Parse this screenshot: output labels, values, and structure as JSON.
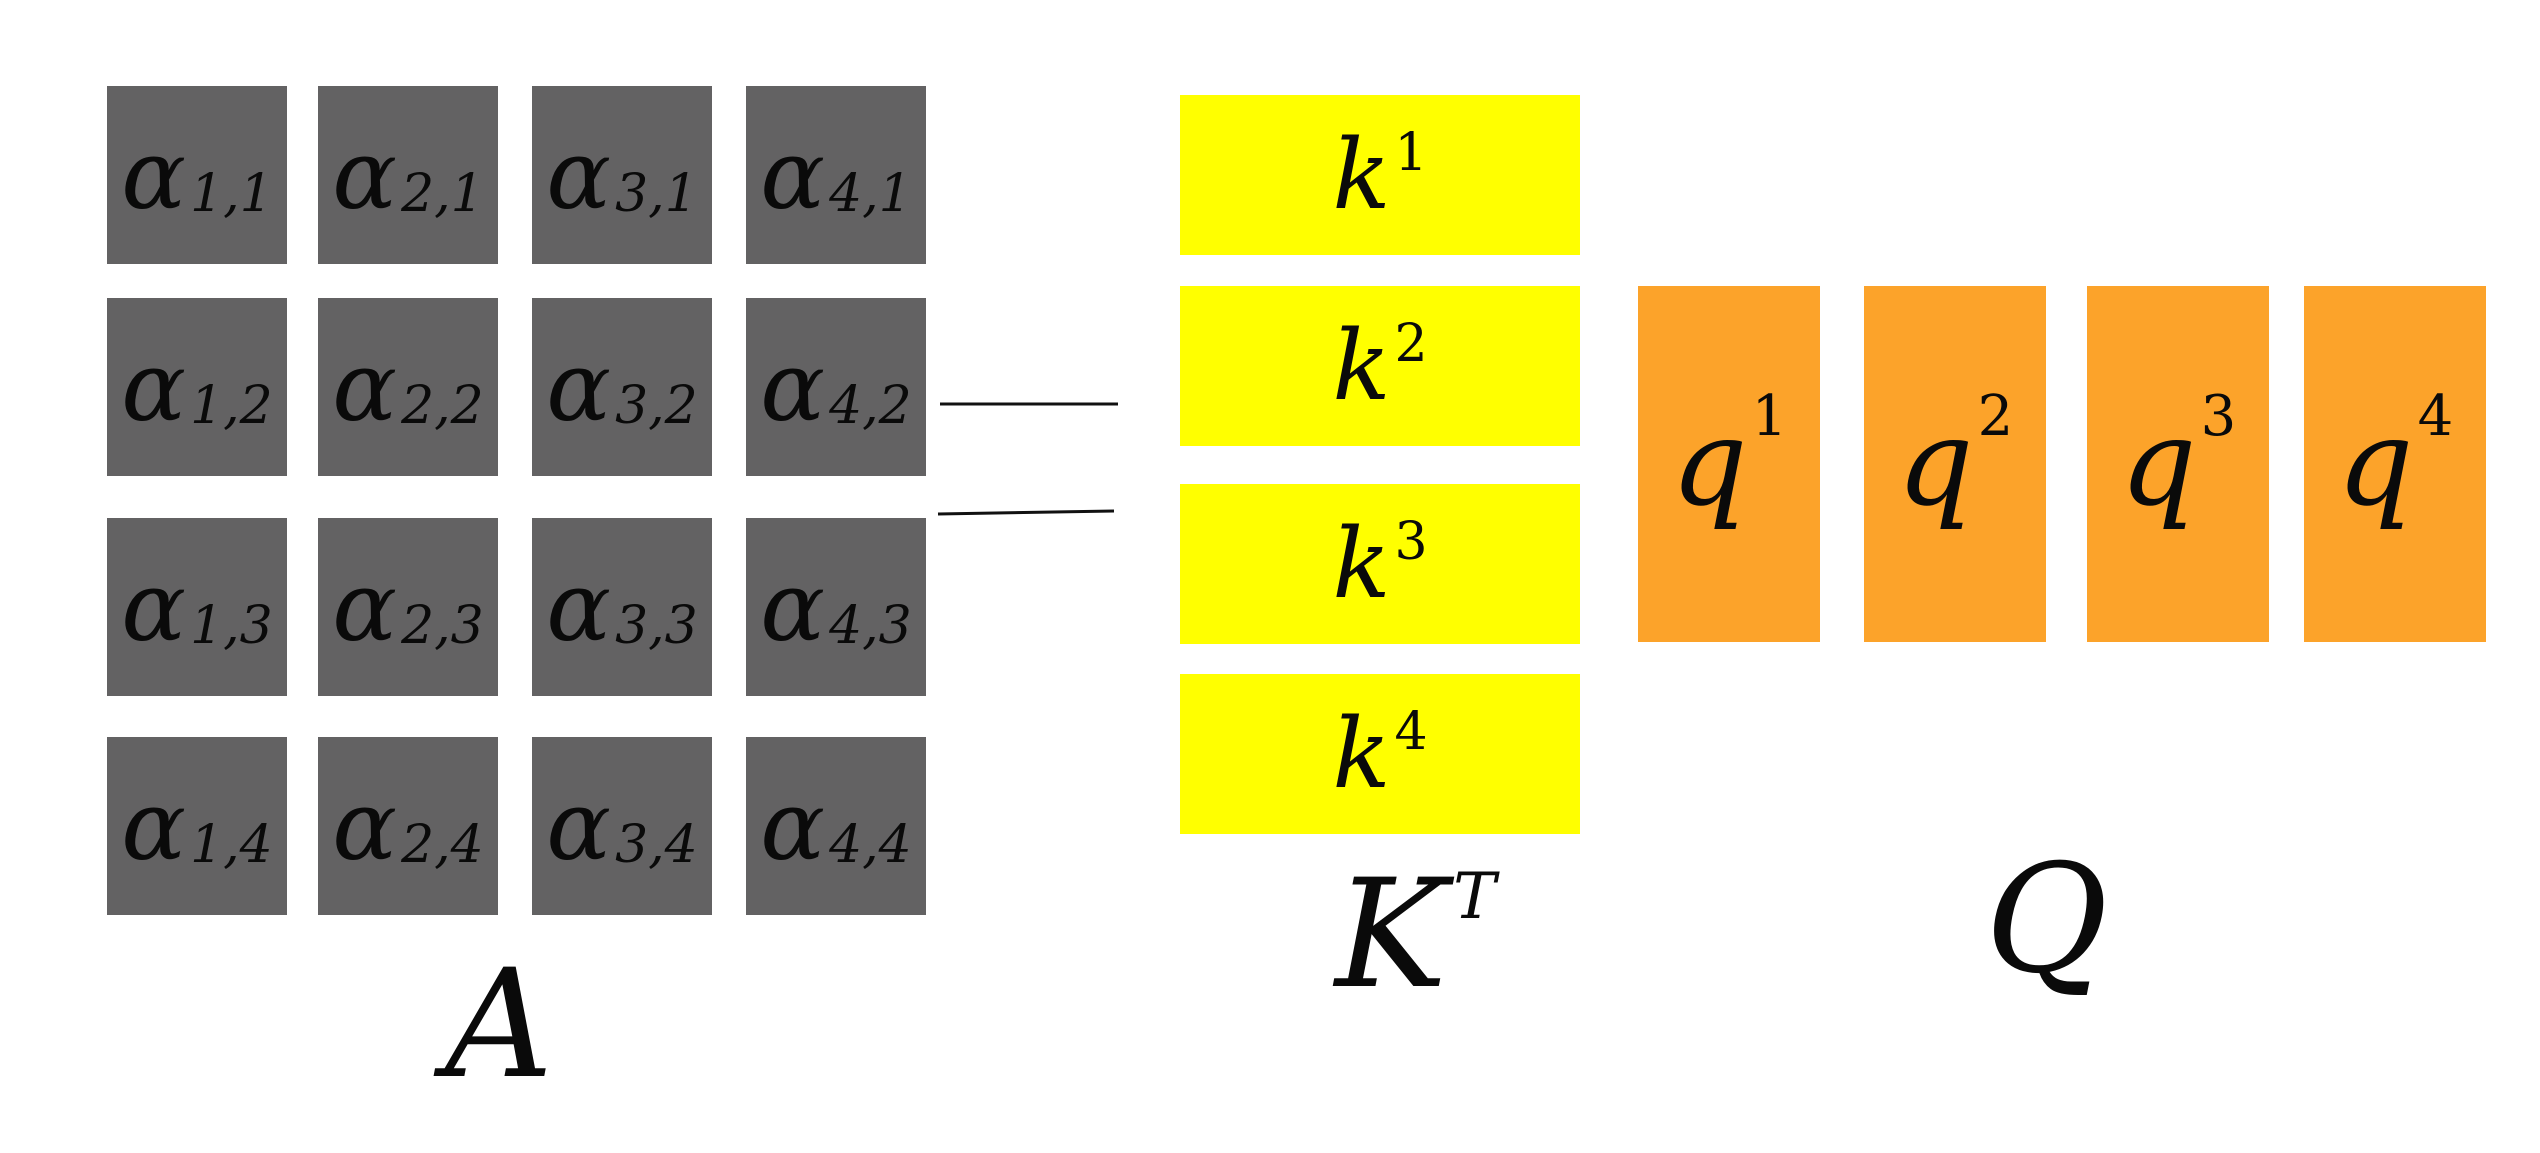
{
  "A": {
    "symbol": "α",
    "cells": [
      [
        "1,1",
        "2,1",
        "3,1",
        "4,1"
      ],
      [
        "1,2",
        "2,2",
        "3,2",
        "4,2"
      ],
      [
        "1,3",
        "2,3",
        "3,3",
        "4,3"
      ],
      [
        "1,4",
        "2,4",
        "3,4",
        "4,4"
      ]
    ],
    "label": "A",
    "color": "#636263"
  },
  "KT": {
    "symbol": "k",
    "items": [
      "1",
      "2",
      "3",
      "4"
    ],
    "label": "K",
    "label_sup": "T",
    "color": "#ffff00"
  },
  "Q": {
    "symbol": "q",
    "items": [
      "1",
      "2",
      "3",
      "4"
    ],
    "label": "Q",
    "color": "#fca32a"
  }
}
